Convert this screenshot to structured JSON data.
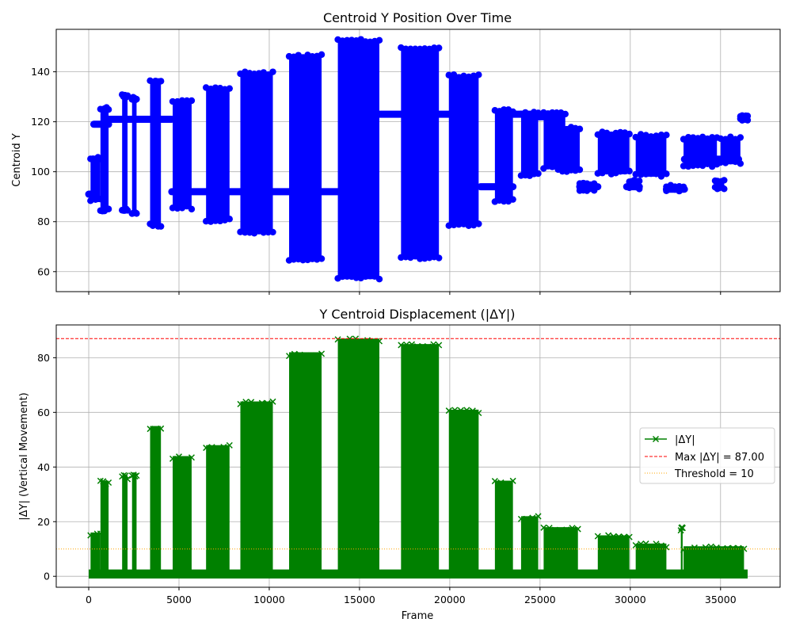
{
  "colors": {
    "top_series": "#0000ff",
    "bottom_series": "#008000",
    "max_line": "#ff0000",
    "threshold_line": "#ffa500",
    "grid": "#b0b0b0"
  },
  "chart_data": [
    {
      "type": "scatter",
      "title": "Centroid Y Position Over Time",
      "xlabel": "",
      "ylabel": "Centroid Y",
      "xlim": [
        -1800,
        38300
      ],
      "ylim": [
        52,
        157
      ],
      "xticks": [
        0,
        5000,
        10000,
        15000,
        20000,
        25000,
        30000,
        35000
      ],
      "yticks": [
        60,
        80,
        100,
        120,
        140
      ],
      "ytick_labels": [
        "60",
        "80",
        "100",
        "120",
        "140"
      ],
      "grid": true,
      "marker": "circle",
      "baseline_segments": [
        {
          "x0": 0,
          "x1": 280,
          "y": 91
        },
        {
          "x0": 280,
          "x1": 1100,
          "y": 119
        },
        {
          "x0": 1100,
          "x1": 4600,
          "y": 121
        },
        {
          "x0": 4600,
          "x1": 10000,
          "y": 92
        },
        {
          "x0": 10000,
          "x1": 13800,
          "y": 92
        },
        {
          "x0": 16100,
          "x1": 20200,
          "y": 123
        },
        {
          "x0": 21700,
          "x1": 23500,
          "y": 94
        },
        {
          "x0": 23500,
          "x1": 24700,
          "y": 123
        },
        {
          "x0": 24700,
          "x1": 26000,
          "y": 122
        },
        {
          "x0": 27200,
          "x1": 28200,
          "y": 94
        },
        {
          "x0": 29800,
          "x1": 30500,
          "y": 94
        },
        {
          "x0": 32000,
          "x1": 33000,
          "y": 93
        },
        {
          "x0": 33000,
          "x1": 36000,
          "y": 105
        }
      ],
      "bursts": [
        {
          "x0": 100,
          "x1": 650,
          "ymin": 88,
          "ymax": 106
        },
        {
          "x0": 650,
          "x1": 1100,
          "ymin": 84,
          "ymax": 126
        },
        {
          "x0": 1850,
          "x1": 2150,
          "ymin": 84,
          "ymax": 131
        },
        {
          "x0": 2400,
          "x1": 2650,
          "ymin": 83,
          "ymax": 130
        },
        {
          "x0": 3400,
          "x1": 4000,
          "ymin": 78,
          "ymax": 137
        },
        {
          "x0": 4650,
          "x1": 5700,
          "ymin": 85,
          "ymax": 129
        },
        {
          "x0": 6500,
          "x1": 7800,
          "ymin": 80,
          "ymax": 134
        },
        {
          "x0": 8400,
          "x1": 10200,
          "ymin": 75,
          "ymax": 140
        },
        {
          "x0": 11100,
          "x1": 12900,
          "ymin": 64,
          "ymax": 147
        },
        {
          "x0": 13800,
          "x1": 16100,
          "ymin": 57,
          "ymax": 153
        },
        {
          "x0": 17300,
          "x1": 19400,
          "ymin": 65,
          "ymax": 150
        },
        {
          "x0": 19950,
          "x1": 21600,
          "ymin": 78,
          "ymax": 139
        },
        {
          "x0": 22500,
          "x1": 23500,
          "ymin": 88,
          "ymax": 125
        },
        {
          "x0": 23950,
          "x1": 24900,
          "ymin": 98,
          "ymax": 124
        },
        {
          "x0": 25200,
          "x1": 26400,
          "ymin": 101,
          "ymax": 124
        },
        {
          "x0": 26000,
          "x1": 27200,
          "ymin": 100,
          "ymax": 118
        },
        {
          "x0": 27200,
          "x1": 28000,
          "ymin": 92,
          "ymax": 96
        },
        {
          "x0": 28200,
          "x1": 29950,
          "ymin": 99,
          "ymax": 116
        },
        {
          "x0": 29950,
          "x1": 30500,
          "ymin": 93,
          "ymax": 97
        },
        {
          "x0": 30300,
          "x1": 32000,
          "ymin": 98,
          "ymax": 115
        },
        {
          "x0": 32000,
          "x1": 32950,
          "ymin": 92,
          "ymax": 95
        },
        {
          "x0": 32950,
          "x1": 34800,
          "ymin": 102,
          "ymax": 114
        },
        {
          "x0": 34700,
          "x1": 35200,
          "ymin": 93,
          "ymax": 97
        },
        {
          "x0": 35000,
          "x1": 36100,
          "ymin": 103,
          "ymax": 114
        },
        {
          "x0": 36100,
          "x1": 36500,
          "ymin": 120,
          "ymax": 123
        }
      ]
    },
    {
      "type": "scatter",
      "title": "Y Centroid Displacement (|ΔY|)",
      "xlabel": "Frame",
      "ylabel": "|ΔY| (Vertical Movement)",
      "xlim": [
        -1800,
        38300
      ],
      "ylim": [
        -4,
        92
      ],
      "xticks": [
        0,
        5000,
        10000,
        15000,
        20000,
        25000,
        30000,
        35000
      ],
      "xtick_labels": [
        "0",
        "5000",
        "10000",
        "15000",
        "20000",
        "25000",
        "30000",
        "35000"
      ],
      "yticks": [
        0,
        20,
        40,
        60,
        80
      ],
      "ytick_labels": [
        "0",
        "20",
        "40",
        "60",
        "80"
      ],
      "grid": true,
      "marker": "x",
      "baseline_x": [
        0,
        36500
      ],
      "bursts": [
        {
          "x0": 100,
          "x1": 650,
          "ymax": 16
        },
        {
          "x0": 650,
          "x1": 1100,
          "ymax": 35
        },
        {
          "x0": 1850,
          "x1": 2150,
          "ymax": 37
        },
        {
          "x0": 2400,
          "x1": 2650,
          "ymax": 38
        },
        {
          "x0": 3400,
          "x1": 4000,
          "ymax": 55
        },
        {
          "x0": 4650,
          "x1": 5700,
          "ymax": 44
        },
        {
          "x0": 6500,
          "x1": 7800,
          "ymax": 48
        },
        {
          "x0": 8400,
          "x1": 10200,
          "ymax": 64
        },
        {
          "x0": 11100,
          "x1": 12900,
          "ymax": 82
        },
        {
          "x0": 13800,
          "x1": 16100,
          "ymax": 87
        },
        {
          "x0": 17300,
          "x1": 19400,
          "ymax": 85
        },
        {
          "x0": 19950,
          "x1": 21600,
          "ymax": 61
        },
        {
          "x0": 22500,
          "x1": 23500,
          "ymax": 35
        },
        {
          "x0": 23950,
          "x1": 24900,
          "ymax": 22
        },
        {
          "x0": 25200,
          "x1": 27100,
          "ymax": 18
        },
        {
          "x0": 28200,
          "x1": 29950,
          "ymax": 15
        },
        {
          "x0": 30300,
          "x1": 32000,
          "ymax": 12
        },
        {
          "x0": 32800,
          "x1": 32900,
          "ymax": 18
        },
        {
          "x0": 32950,
          "x1": 36300,
          "ymax": 11
        }
      ],
      "hlines": [
        {
          "label": "Max |ΔY| = 87.00",
          "y": 87.0,
          "style": "dashed",
          "color": "#ff0000"
        },
        {
          "label": "Threshold = 10",
          "y": 10,
          "style": "dotted",
          "color": "#ffa500"
        }
      ],
      "legend": {
        "placement": "center-right",
        "entries": [
          "|ΔY|",
          "Max |ΔY| = 87.00",
          "Threshold = 10"
        ]
      }
    }
  ]
}
